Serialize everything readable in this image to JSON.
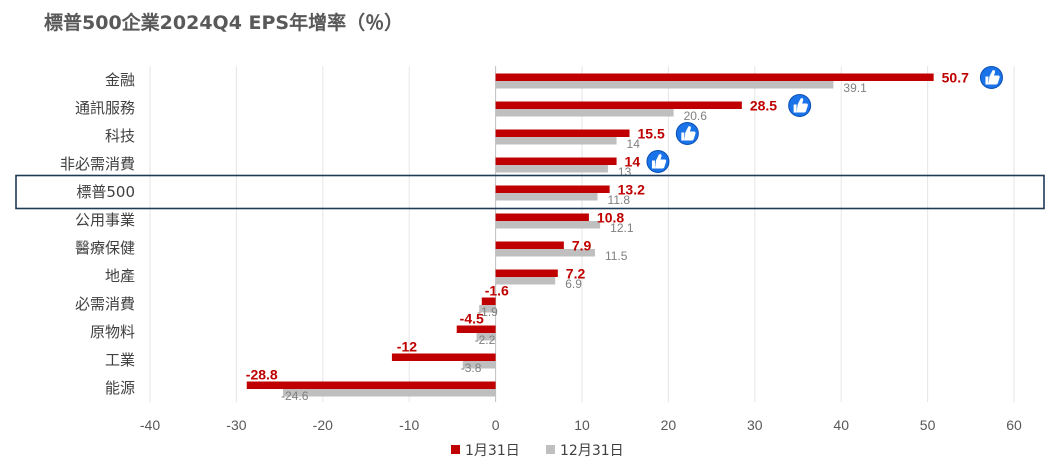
{
  "chart_data": {
    "type": "bar",
    "orientation": "horizontal",
    "title": "標普500企業2024Q4 EPS年增率（％）",
    "categories": [
      "金融",
      "通訊服務",
      "科技",
      "非必需消費",
      "標普500",
      "公用事業",
      "醫療保健",
      "地產",
      "必需消費",
      "原物料",
      "工業",
      "能源"
    ],
    "series": [
      {
        "name": "1月31日",
        "color": "#c00000",
        "values": [
          50.7,
          28.5,
          15.5,
          14,
          13.2,
          10.8,
          7.9,
          7.2,
          -1.6,
          -4.5,
          -12,
          -28.8
        ]
      },
      {
        "name": "12月31日",
        "color": "#bfbfbf",
        "values": [
          39.1,
          20.6,
          14,
          13,
          11.8,
          12.1,
          11.5,
          6.9,
          -1.9,
          -2.2,
          -3.8,
          -24.6
        ]
      }
    ],
    "xlim": [
      -40,
      60
    ],
    "xticks": [
      -40,
      -30,
      -20,
      -10,
      0,
      10,
      20,
      30,
      40,
      50,
      60
    ],
    "grid": true,
    "legend_position": "bottom",
    "highlighted_category": "標普500",
    "thumbs_up_categories": [
      "金融",
      "通訊服務",
      "科技",
      "非必需消費"
    ],
    "icon": "thumbs-up-icon",
    "thumbs_color": "#1a73e8"
  }
}
